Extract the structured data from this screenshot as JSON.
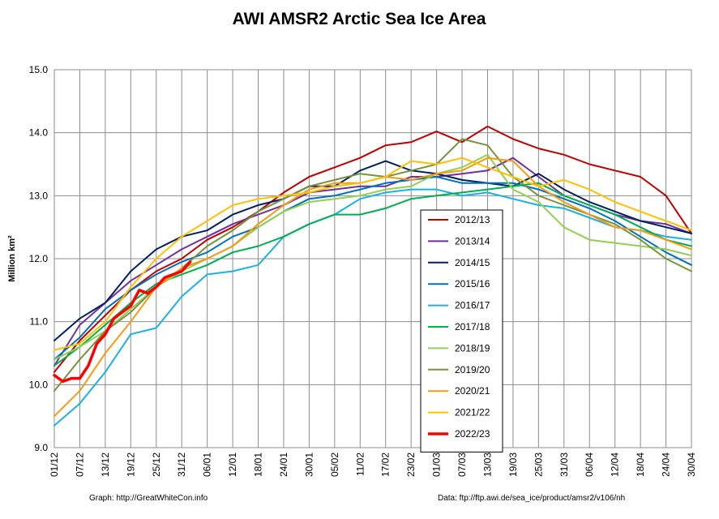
{
  "chart_data": {
    "type": "line",
    "title": "AWI AMSR2 Arctic Sea Ice Area",
    "ylabel": "Million km²",
    "xlabel": "",
    "ylim": [
      9.0,
      15.0
    ],
    "yticks": [
      "9.0",
      "10.0",
      "11.0",
      "12.0",
      "13.0",
      "14.0",
      "15.0"
    ],
    "xlim": [
      "01/12",
      "30/04"
    ],
    "xticks": [
      "01/12",
      "07/12",
      "13/12",
      "19/12",
      "25/12",
      "31/12",
      "06/01",
      "12/01",
      "18/01",
      "24/01",
      "30/01",
      "05/02",
      "11/02",
      "17/02",
      "23/02",
      "01/03",
      "07/03",
      "13/03",
      "19/03",
      "25/03",
      "31/03",
      "06/04",
      "12/04",
      "18/04",
      "24/04",
      "30/04"
    ],
    "grid": true,
    "legend_position": "center-right",
    "footer_left": "Graph: http://GreatWhiteCon.info",
    "footer_right": "Data: ftp://ftp.awi.de/sea_ice/product/amsr2/v106/nh",
    "series": [
      {
        "name": "2012/13",
        "color": "#c00000",
        "width": 2,
        "x": [
          "01/12",
          "07/12",
          "13/12",
          "19/12",
          "25/12",
          "31/12",
          "06/01",
          "12/01",
          "18/01",
          "24/01",
          "30/01",
          "05/02",
          "11/02",
          "17/02",
          "23/02",
          "01/03",
          "07/03",
          "13/03",
          "19/03",
          "25/03",
          "31/03",
          "06/04",
          "12/04",
          "18/04",
          "24/04",
          "30/04"
        ],
        "y": [
          10.2,
          10.7,
          11.1,
          11.5,
          11.8,
          12.0,
          12.3,
          12.5,
          12.75,
          13.05,
          13.3,
          13.45,
          13.6,
          13.8,
          13.85,
          14.02,
          13.85,
          14.1,
          13.9,
          13.75,
          13.65,
          13.5,
          13.4,
          13.3,
          13.0,
          12.4
        ]
      },
      {
        "name": "2013/14",
        "color": "#7030a0",
        "width": 2,
        "x": [
          "01/12",
          "07/12",
          "13/12",
          "19/12",
          "25/12",
          "31/12",
          "06/01",
          "12/01",
          "18/01",
          "24/01",
          "30/01",
          "05/02",
          "11/02",
          "17/02",
          "23/02",
          "01/03",
          "07/03",
          "13/03",
          "19/03",
          "25/03",
          "31/03",
          "06/04",
          "12/04",
          "18/04",
          "24/04",
          "30/04"
        ],
        "y": [
          10.3,
          10.95,
          11.3,
          11.65,
          11.9,
          12.15,
          12.35,
          12.55,
          12.7,
          12.85,
          13.05,
          13.1,
          13.15,
          13.15,
          13.3,
          13.3,
          13.35,
          13.4,
          13.6,
          13.3,
          13.0,
          12.85,
          12.7,
          12.6,
          12.55,
          12.4
        ]
      },
      {
        "name": "2014/15",
        "color": "#002060",
        "width": 2,
        "x": [
          "01/12",
          "07/12",
          "13/12",
          "19/12",
          "25/12",
          "31/12",
          "06/01",
          "12/01",
          "18/01",
          "24/01",
          "30/01",
          "05/02",
          "11/02",
          "17/02",
          "23/02",
          "01/03",
          "07/03",
          "13/03",
          "19/03",
          "25/03",
          "31/03",
          "06/04",
          "12/04",
          "18/04",
          "24/04",
          "30/04"
        ],
        "y": [
          10.7,
          11.05,
          11.3,
          11.8,
          12.15,
          12.35,
          12.45,
          12.7,
          12.85,
          12.95,
          13.15,
          13.15,
          13.4,
          13.55,
          13.4,
          13.35,
          13.25,
          13.2,
          13.15,
          13.35,
          13.1,
          12.9,
          12.75,
          12.6,
          12.5,
          12.4
        ]
      },
      {
        "name": "2015/16",
        "color": "#0070c0",
        "width": 2,
        "x": [
          "01/12",
          "07/12",
          "13/12",
          "19/12",
          "25/12",
          "31/12",
          "06/01",
          "12/01",
          "18/01",
          "24/01",
          "30/01",
          "05/02",
          "11/02",
          "17/02",
          "23/02",
          "01/03",
          "07/03",
          "13/03",
          "19/03",
          "25/03",
          "31/03",
          "06/04",
          "12/04",
          "18/04",
          "24/04",
          "30/04"
        ],
        "y": [
          10.4,
          10.75,
          11.2,
          11.5,
          11.75,
          11.95,
          12.1,
          12.35,
          12.5,
          12.75,
          12.95,
          13.0,
          13.1,
          13.2,
          13.25,
          13.3,
          13.2,
          13.2,
          13.2,
          13.1,
          12.95,
          12.8,
          12.6,
          12.35,
          12.1,
          11.9
        ]
      },
      {
        "name": "2016/17",
        "color": "#1ab2e6",
        "width": 2,
        "x": [
          "01/12",
          "07/12",
          "13/12",
          "19/12",
          "25/12",
          "31/12",
          "06/01",
          "12/01",
          "18/01",
          "24/01",
          "30/01",
          "05/02",
          "11/02",
          "17/02",
          "23/02",
          "01/03",
          "07/03",
          "13/03",
          "19/03",
          "25/03",
          "31/03",
          "06/04",
          "12/04",
          "18/04",
          "24/04",
          "30/04"
        ],
        "y": [
          9.35,
          9.7,
          10.2,
          10.8,
          10.9,
          11.4,
          11.75,
          11.8,
          11.9,
          12.35,
          12.55,
          12.7,
          12.95,
          13.05,
          13.1,
          13.1,
          13.0,
          13.05,
          12.95,
          12.85,
          12.8,
          12.65,
          12.5,
          12.45,
          12.35,
          12.3
        ]
      },
      {
        "name": "2017/18",
        "color": "#00b050",
        "width": 2,
        "x": [
          "01/12",
          "07/12",
          "13/12",
          "19/12",
          "25/12",
          "31/12",
          "06/01",
          "12/01",
          "18/01",
          "24/01",
          "30/01",
          "05/02",
          "11/02",
          "17/02",
          "23/02",
          "01/03",
          "07/03",
          "13/03",
          "19/03",
          "25/03",
          "31/03",
          "06/04",
          "12/04",
          "18/04",
          "24/04",
          "30/04"
        ],
        "y": [
          10.3,
          10.6,
          10.95,
          11.3,
          11.6,
          11.75,
          11.9,
          12.1,
          12.2,
          12.35,
          12.55,
          12.7,
          12.7,
          12.8,
          12.95,
          13.0,
          13.05,
          13.1,
          13.15,
          13.2,
          13.0,
          12.85,
          12.7,
          12.5,
          12.3,
          12.2
        ]
      },
      {
        "name": "2018/19",
        "color": "#92d050",
        "width": 2,
        "x": [
          "01/12",
          "07/12",
          "13/12",
          "19/12",
          "25/12",
          "31/12",
          "06/01",
          "12/01",
          "18/01",
          "24/01",
          "30/01",
          "05/02",
          "11/02",
          "17/02",
          "23/02",
          "01/03",
          "07/03",
          "13/03",
          "19/03",
          "25/03",
          "31/03",
          "06/04",
          "12/04",
          "18/04",
          "24/04",
          "30/04"
        ],
        "y": [
          10.4,
          10.6,
          10.85,
          11.2,
          11.55,
          11.8,
          12.0,
          12.2,
          12.5,
          12.75,
          12.9,
          12.95,
          13.0,
          13.1,
          13.15,
          13.35,
          13.45,
          13.65,
          13.1,
          12.9,
          12.5,
          12.3,
          12.25,
          12.2,
          12.15,
          12.05
        ]
      },
      {
        "name": "2019/20",
        "color": "#77933c",
        "width": 2,
        "x": [
          "01/12",
          "07/12",
          "13/12",
          "19/12",
          "25/12",
          "31/12",
          "06/01",
          "12/01",
          "18/01",
          "24/01",
          "30/01",
          "05/02",
          "11/02",
          "17/02",
          "23/02",
          "01/03",
          "07/03",
          "13/03",
          "19/03",
          "25/03",
          "31/03",
          "06/04",
          "12/04",
          "18/04",
          "24/04",
          "30/04"
        ],
        "y": [
          9.9,
          10.4,
          10.85,
          11.15,
          11.55,
          11.85,
          12.2,
          12.45,
          12.75,
          12.95,
          13.15,
          13.25,
          13.35,
          13.3,
          13.4,
          13.5,
          13.9,
          13.8,
          13.3,
          13.0,
          12.85,
          12.7,
          12.55,
          12.3,
          12.0,
          11.8
        ]
      },
      {
        "name": "2020/21",
        "color": "#f79a12",
        "width": 2,
        "x": [
          "01/12",
          "07/12",
          "13/12",
          "19/12",
          "25/12",
          "31/12",
          "06/01",
          "12/01",
          "18/01",
          "24/01",
          "30/01",
          "05/02",
          "11/02",
          "17/02",
          "23/02",
          "01/03",
          "07/03",
          "13/03",
          "19/03",
          "25/03",
          "31/03",
          "06/04",
          "12/04",
          "18/04",
          "24/04",
          "30/04"
        ],
        "y": [
          9.5,
          9.9,
          10.5,
          11.0,
          11.55,
          11.85,
          12.0,
          12.2,
          12.55,
          12.85,
          13.1,
          13.2,
          13.2,
          13.3,
          13.25,
          13.35,
          13.4,
          13.6,
          13.55,
          13.15,
          12.9,
          12.7,
          12.5,
          12.45,
          12.3,
          12.15
        ]
      },
      {
        "name": "2021/22",
        "color": "#ffc000",
        "width": 2,
        "x": [
          "01/12",
          "07/12",
          "13/12",
          "19/12",
          "25/12",
          "31/12",
          "06/01",
          "12/01",
          "18/01",
          "24/01",
          "30/01",
          "05/02",
          "11/02",
          "17/02",
          "23/02",
          "01/03",
          "07/03",
          "13/03",
          "19/03",
          "25/03",
          "31/03",
          "06/04",
          "12/04",
          "18/04",
          "24/04",
          "30/04"
        ],
        "y": [
          10.55,
          10.65,
          11.0,
          11.55,
          12.0,
          12.35,
          12.6,
          12.85,
          12.95,
          13.0,
          13.05,
          13.15,
          13.2,
          13.3,
          13.55,
          13.5,
          13.6,
          13.45,
          13.3,
          13.15,
          13.25,
          13.1,
          12.9,
          12.75,
          12.6,
          12.45
        ]
      },
      {
        "name": "2022/23",
        "color": "#ff0000",
        "width": 3.5,
        "x": [
          "01/12",
          "03/12",
          "05/12",
          "07/12",
          "09/12",
          "11/12",
          "13/12",
          "15/12",
          "17/12",
          "19/12",
          "21/12",
          "23/12",
          "25/12",
          "27/12",
          "29/12",
          "31/12",
          "02/01"
        ],
        "y": [
          10.15,
          10.05,
          10.1,
          10.1,
          10.3,
          10.65,
          10.8,
          11.05,
          11.15,
          11.25,
          11.5,
          11.45,
          11.55,
          11.7,
          11.75,
          11.8,
          11.95
        ]
      }
    ]
  }
}
